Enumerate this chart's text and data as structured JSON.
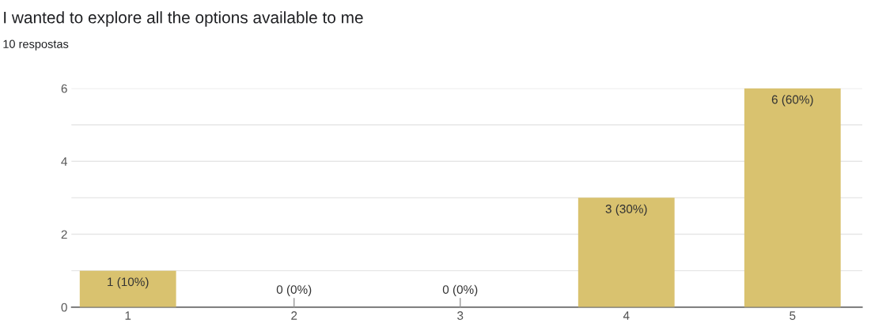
{
  "chart_data": {
    "type": "bar",
    "title": "I wanted to explore all the options available to me",
    "subtitle": "10 respostas",
    "categories": [
      "1",
      "2",
      "3",
      "4",
      "5"
    ],
    "values": [
      1,
      0,
      0,
      3,
      6
    ],
    "value_labels": [
      "1 (10%)",
      "0 (0%)",
      "0 (0%)",
      "3 (30%)",
      "6 (60%)"
    ],
    "color": "#d9c26f",
    "ylim": [
      0,
      6
    ],
    "yticks": [
      0,
      {
        "value": 1,
        "label": null
      },
      2,
      {
        "value": 3,
        "label": null
      },
      4,
      {
        "value": 5,
        "label": null
      },
      6
    ],
    "grid": "y"
  }
}
